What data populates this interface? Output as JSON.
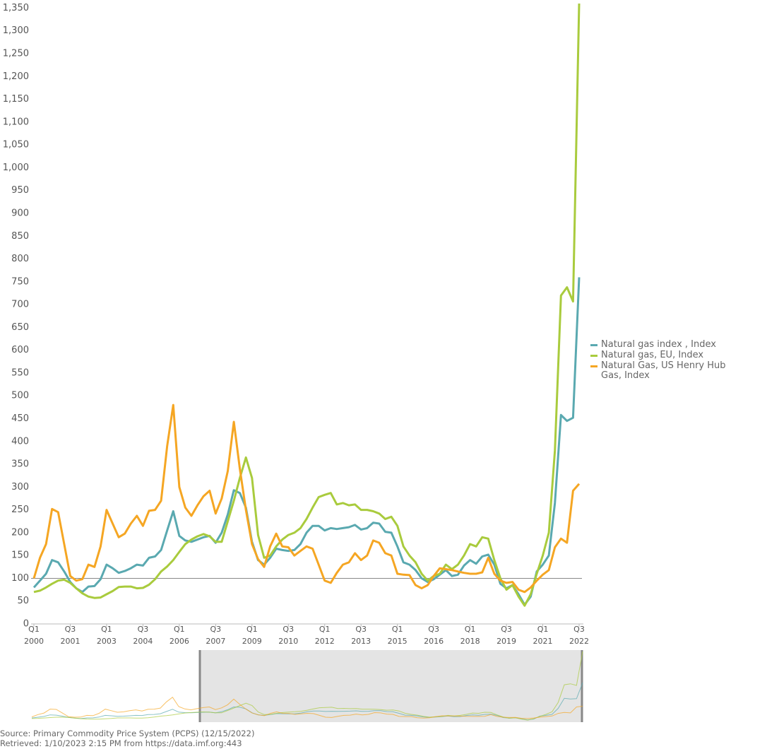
{
  "chart_data": {
    "type": "line",
    "categories": [
      [
        "Q1",
        "2000"
      ],
      null,
      null,
      null,
      null,
      null,
      [
        "Q3",
        "2001"
      ],
      null,
      null,
      null,
      null,
      null,
      [
        "Q1",
        "2003"
      ],
      null,
      null,
      null,
      null,
      null,
      [
        "Q3",
        "2004"
      ],
      null,
      null,
      null,
      null,
      null,
      [
        "Q1",
        "2006"
      ],
      null,
      null,
      null,
      null,
      null,
      [
        "Q3",
        "2007"
      ],
      null,
      null,
      null,
      null,
      null,
      [
        "Q1",
        "2009"
      ],
      null,
      null,
      null,
      null,
      null,
      [
        "Q3",
        "2010"
      ],
      null,
      null,
      null,
      null,
      null,
      [
        "Q1",
        "2012"
      ],
      null,
      null,
      null,
      null,
      null,
      [
        "Q3",
        "2013"
      ],
      null,
      null,
      null,
      null,
      null,
      [
        "Q1",
        "2015"
      ],
      null,
      null,
      null,
      null,
      null,
      [
        "Q3",
        "2016"
      ],
      null,
      null,
      null,
      null,
      null,
      [
        "Q1",
        "2018"
      ],
      null,
      null,
      null,
      null,
      null,
      [
        "Q3",
        "2019"
      ],
      null,
      null,
      null,
      null,
      null,
      [
        "Q1",
        "2021"
      ],
      null,
      null,
      null,
      null,
      null,
      [
        "Q3",
        "2022"
      ]
    ],
    "series": [
      {
        "name": "Natural gas index , Index",
        "color": "#5aa9b0",
        "values": [
          80,
          95,
          110,
          140,
          135,
          115,
          92,
          78,
          70,
          82,
          83,
          98,
          130,
          122,
          112,
          116,
          122,
          130,
          128,
          145,
          148,
          162,
          205,
          247,
          193,
          183,
          180,
          185,
          190,
          193,
          178,
          200,
          240,
          293,
          287,
          255,
          180,
          140,
          130,
          145,
          165,
          162,
          160,
          162,
          175,
          200,
          215,
          215,
          205,
          210,
          208,
          210,
          212,
          217,
          207,
          210,
          222,
          220,
          202,
          200,
          170,
          135,
          130,
          118,
          100,
          92,
          98,
          108,
          118,
          105,
          108,
          128,
          140,
          132,
          148,
          152,
          130,
          88,
          78,
          85,
          65,
          42,
          60,
          115,
          130,
          150,
          265,
          458,
          445,
          452,
          760
        ]
      },
      {
        "name": "Natural gas, EU, Index",
        "color": "#a9cb3d",
        "values": [
          70,
          73,
          80,
          88,
          95,
          97,
          90,
          78,
          67,
          60,
          57,
          58,
          65,
          72,
          81,
          82,
          82,
          78,
          79,
          86,
          98,
          115,
          126,
          140,
          158,
          175,
          185,
          192,
          197,
          192,
          180,
          180,
          225,
          270,
          320,
          365,
          320,
          195,
          145,
          150,
          170,
          185,
          195,
          200,
          210,
          230,
          255,
          278,
          283,
          287,
          262,
          265,
          260,
          262,
          250,
          250,
          247,
          242,
          230,
          235,
          215,
          170,
          150,
          135,
          110,
          95,
          105,
          110,
          130,
          120,
          130,
          150,
          175,
          170,
          190,
          187,
          140,
          100,
          75,
          85,
          60,
          40,
          65,
          110,
          150,
          200,
          380,
          720,
          738,
          707,
          1360
        ]
      },
      {
        "name": "Natural Gas, US Henry Hub Gas, Index",
        "color": "#f5a623",
        "values": [
          100,
          145,
          175,
          252,
          245,
          175,
          105,
          95,
          98,
          130,
          125,
          170,
          250,
          220,
          190,
          198,
          220,
          237,
          215,
          248,
          250,
          270,
          390,
          480,
          300,
          255,
          237,
          260,
          280,
          292,
          242,
          275,
          335,
          443,
          340,
          250,
          175,
          142,
          125,
          170,
          198,
          170,
          168,
          150,
          160,
          170,
          165,
          130,
          95,
          90,
          112,
          130,
          135,
          155,
          140,
          150,
          183,
          178,
          155,
          150,
          110,
          108,
          107,
          85,
          78,
          85,
          105,
          122,
          120,
          118,
          115,
          112,
          110,
          110,
          113,
          145,
          110,
          95,
          90,
          92,
          75,
          70,
          80,
          95,
          108,
          118,
          168,
          187,
          178,
          292,
          307
        ]
      }
    ],
    "ylim": [
      0,
      1360
    ],
    "yticks": [
      0,
      50,
      100,
      150,
      200,
      250,
      300,
      350,
      400,
      450,
      500,
      550,
      600,
      650,
      700,
      750,
      800,
      850,
      900,
      950,
      {
        "value": 1000,
        "label": "1,000"
      },
      {
        "value": 1050,
        "label": "1,050"
      },
      {
        "value": 1100,
        "label": "1,100"
      },
      {
        "value": 1150,
        "label": "1,150"
      },
      {
        "value": 1200,
        "label": "1,200"
      },
      {
        "value": 1250,
        "label": "1,250"
      },
      {
        "value": 1300,
        "label": "1,300"
      },
      {
        "value": 1350,
        "label": "1,350"
      }
    ],
    "reference_line": 100,
    "grid": false,
    "source": "Source: Primary Commodity Price System (PCPS) (12/15/2022)",
    "retrieved": "Retrieved: 1/10/2023 2:15 PM from https://data.imf.org:443"
  }
}
